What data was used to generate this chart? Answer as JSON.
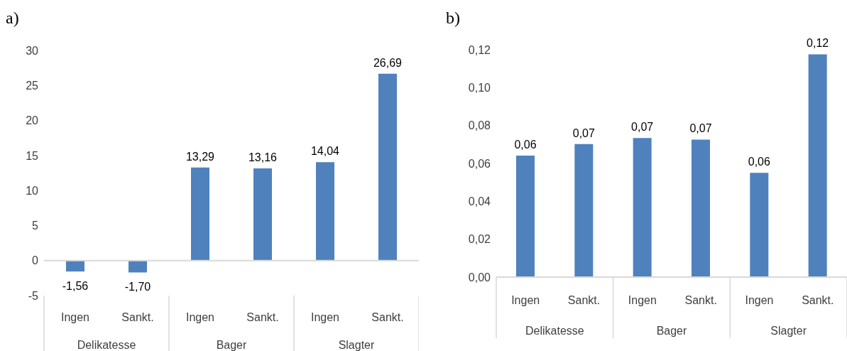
{
  "chart_data": [
    {
      "type": "bar",
      "title": "a)",
      "categories": [
        "Ingen",
        "Sankt.",
        "Ingen",
        "Sankt.",
        "Ingen",
        "Sankt."
      ],
      "annotations": [
        "Delikatesse",
        "Bager",
        "Slagter"
      ],
      "values": [
        -1.56,
        -1.7,
        13.29,
        13.16,
        14.04,
        26.69
      ],
      "value_labels": [
        "-1,56",
        "-1,70",
        "13,29",
        "13,16",
        "14,04",
        "26,69"
      ],
      "color": "#4f81bd",
      "ylim": [
        -5,
        30
      ],
      "yticks": [
        -5,
        0,
        5,
        10,
        15,
        20,
        25,
        30
      ],
      "ref_lines": [
        {
          "axis": "y",
          "value": 0,
          "color": "#d9d9d9"
        }
      ],
      "grid": false
    },
    {
      "type": "bar",
      "title": "b)",
      "categories": [
        "Ingen",
        "Sankt.",
        "Ingen",
        "Sankt.",
        "Ingen",
        "Sankt."
      ],
      "annotations": [
        "Delikatesse",
        "Bager",
        "Slagter"
      ],
      "values": [
        0.0641,
        0.0702,
        0.0734,
        0.0726,
        0.055,
        0.1176
      ],
      "value_labels": [
        "0,06",
        "0,07",
        "0,07",
        "0,07",
        "0,06",
        "0,12"
      ],
      "color": "#4f81bd",
      "ylim": [
        0,
        0.12
      ],
      "yticks": [
        {
          "value": 0,
          "label": "0,00"
        },
        {
          "value": 0.02,
          "label": "0,02"
        },
        {
          "value": 0.04,
          "label": "0,04"
        },
        {
          "value": 0.06,
          "label": "0,06"
        },
        {
          "value": 0.08,
          "label": "0,08"
        },
        {
          "value": 0.1,
          "label": "0,10"
        },
        {
          "value": 0.12,
          "label": "0,12"
        }
      ],
      "grid": false
    }
  ]
}
